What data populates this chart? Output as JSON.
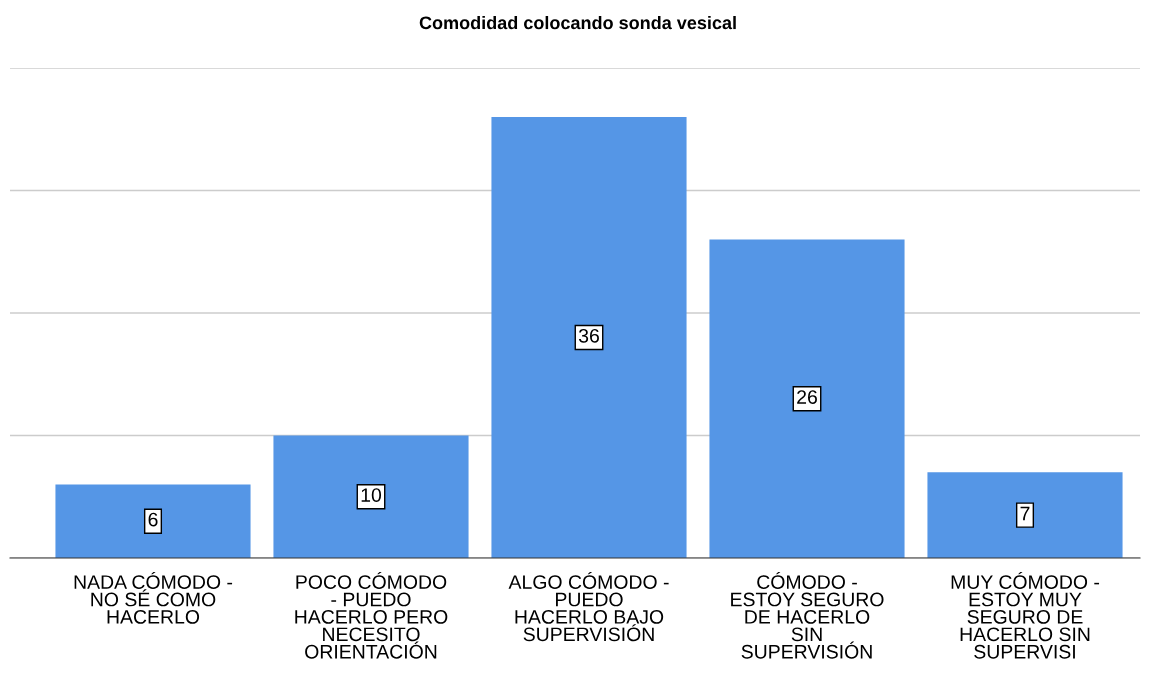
{
  "chart_data": {
    "type": "bar",
    "title": "Comodidad colocando sonda vesical",
    "categories": [
      "NADA CÓMODO -\nNO SÉ COMO\nHACERLO",
      "POCO CÓMODO\n- PUEDO\nHACERLO PERO\nNECESITO\nORIENTACIÓN",
      "ALGO CÓMODO -\nPUEDO\nHACERLO BAJO\nSUPERVISIÓN",
      "CÓMODO -\nESTOY SEGURO\nDE HACERLO\nSIN\nSUPERVISIÓN",
      "MUY CÓMODO -\nESTOY MUY\nSEGURO DE\nHACERLO SIN\nSUPERVISI"
    ],
    "values": [
      6,
      10,
      36,
      26,
      7
    ],
    "color": "#5596e6",
    "ylim": [
      0,
      40
    ],
    "yticks": [
      {
        "value": 0,
        "label": null
      },
      {
        "value": 10,
        "label": null
      },
      {
        "value": 20,
        "label": null
      },
      {
        "value": 30,
        "label": null
      },
      {
        "value": 40,
        "label": null
      }
    ],
    "grid": "y",
    "data_labels": true,
    "tick_labels": "x"
  }
}
